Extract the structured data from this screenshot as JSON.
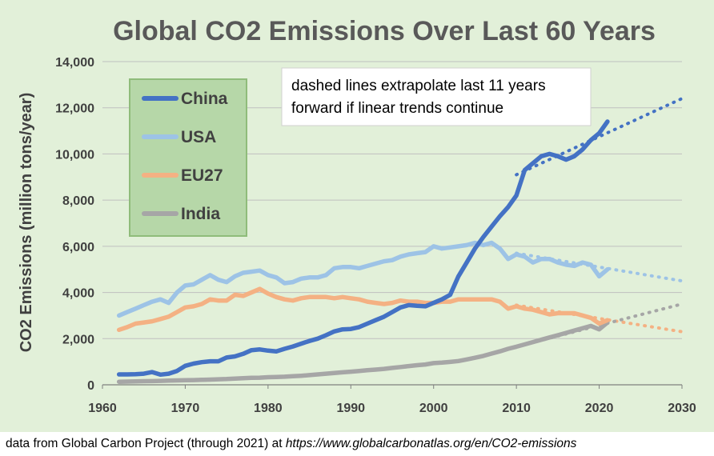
{
  "caption": {
    "text": "data from Global Carbon Project (through 2021) at",
    "url": "https://www.globalcarbonatlas.org/en/CO2-emissions"
  },
  "annotation": {
    "line1": "dashed lines extrapolate last 11 years",
    "line2": "forward if linear trends continue"
  },
  "colors": {
    "background": "#e2f0d9",
    "legend_bg": "#b6d7a8",
    "legend_border": "#8fbc7a",
    "title": "#595959",
    "axis_text": "#404040",
    "grid": "#bfbfbf"
  },
  "chart_data": {
    "type": "line",
    "title": "Global CO2 Emissions Over Last 60 Years",
    "xlabel": "",
    "ylabel": "CO2 Emissions (million tons/year)",
    "xlim": [
      1960,
      2030
    ],
    "ylim": [
      0,
      14000
    ],
    "x_ticks": [
      1960,
      1970,
      1980,
      1990,
      2000,
      2010,
      2020,
      2030
    ],
    "y_ticks": [
      0,
      2000,
      4000,
      6000,
      8000,
      10000,
      12000,
      14000
    ],
    "y_tick_labels": [
      "0",
      "2,000",
      "4,000",
      "6,000",
      "8,000",
      "10,000",
      "12,000",
      "14,000"
    ],
    "grid": "horizontal",
    "legend_position": "top-left",
    "x": [
      1962,
      1963,
      1964,
      1965,
      1966,
      1967,
      1968,
      1969,
      1970,
      1971,
      1972,
      1973,
      1974,
      1975,
      1976,
      1977,
      1978,
      1979,
      1980,
      1981,
      1982,
      1983,
      1984,
      1985,
      1986,
      1987,
      1988,
      1989,
      1990,
      1991,
      1992,
      1993,
      1994,
      1995,
      1996,
      1997,
      1998,
      1999,
      2000,
      2001,
      2002,
      2003,
      2004,
      2005,
      2006,
      2007,
      2008,
      2009,
      2010,
      2011,
      2012,
      2013,
      2014,
      2015,
      2016,
      2017,
      2018,
      2019,
      2020,
      2021
    ],
    "series": [
      {
        "name": "China",
        "color": "#4472c4",
        "values": [
          450,
          450,
          460,
          480,
          550,
          440,
          480,
          600,
          820,
          920,
          980,
          1020,
          1020,
          1180,
          1230,
          1340,
          1500,
          1530,
          1480,
          1450,
          1560,
          1660,
          1780,
          1900,
          2000,
          2150,
          2310,
          2400,
          2420,
          2500,
          2650,
          2800,
          2950,
          3150,
          3350,
          3450,
          3420,
          3400,
          3550,
          3700,
          3900,
          4700,
          5300,
          5900,
          6400,
          6850,
          7300,
          7700,
          8200,
          9300,
          9600,
          9900,
          10000,
          9900,
          9750,
          9900,
          10200,
          10600,
          10900,
          11400
        ]
      },
      {
        "name": "USA",
        "color": "#9dc3e6",
        "values": [
          3000,
          3150,
          3300,
          3450,
          3600,
          3700,
          3550,
          4000,
          4300,
          4350,
          4550,
          4750,
          4550,
          4450,
          4700,
          4850,
          4900,
          4950,
          4750,
          4650,
          4400,
          4450,
          4600,
          4650,
          4650,
          4750,
          5050,
          5100,
          5100,
          5050,
          5150,
          5250,
          5350,
          5400,
          5550,
          5650,
          5700,
          5750,
          6000,
          5900,
          5950,
          6000,
          6050,
          6150,
          6050,
          6150,
          5900,
          5450,
          5650,
          5550,
          5300,
          5450,
          5450,
          5300,
          5200,
          5150,
          5300,
          5200,
          4700,
          5000
        ]
      },
      {
        "name": "EU27",
        "color": "#f4b183",
        "values": [
          2380,
          2500,
          2650,
          2700,
          2750,
          2850,
          2950,
          3150,
          3350,
          3400,
          3500,
          3700,
          3650,
          3650,
          3900,
          3850,
          4000,
          4150,
          3950,
          3800,
          3700,
          3650,
          3750,
          3800,
          3800,
          3800,
          3750,
          3800,
          3750,
          3700,
          3600,
          3550,
          3500,
          3550,
          3650,
          3600,
          3600,
          3550,
          3550,
          3600,
          3600,
          3700,
          3700,
          3700,
          3700,
          3700,
          3600,
          3300,
          3400,
          3300,
          3250,
          3150,
          3050,
          3100,
          3100,
          3100,
          3000,
          2900,
          2650,
          2800
        ]
      },
      {
        "name": "India",
        "color": "#a6a6a6",
        "values": [
          130,
          140,
          150,
          155,
          160,
          170,
          180,
          190,
          200,
          205,
          215,
          225,
          240,
          250,
          270,
          285,
          300,
          310,
          330,
          340,
          350,
          370,
          390,
          420,
          450,
          480,
          510,
          540,
          570,
          600,
          630,
          660,
          690,
          730,
          770,
          810,
          850,
          880,
          940,
          960,
          990,
          1030,
          1100,
          1170,
          1250,
          1350,
          1450,
          1560,
          1650,
          1750,
          1850,
          1950,
          2050,
          2150,
          2250,
          2350,
          2450,
          2550,
          2400,
          2700
        ]
      }
    ],
    "extrapolations": [
      {
        "name": "China",
        "x": [
          2010,
          2030
        ],
        "values": [
          9100,
          12400
        ]
      },
      {
        "name": "USA",
        "x": [
          2010,
          2030
        ],
        "values": [
          5700,
          4500
        ]
      },
      {
        "name": "EU27",
        "x": [
          2010,
          2030
        ],
        "values": [
          3450,
          2300
        ]
      },
      {
        "name": "India",
        "x": [
          2010,
          2030
        ],
        "values": [
          1650,
          3500
        ]
      }
    ]
  }
}
